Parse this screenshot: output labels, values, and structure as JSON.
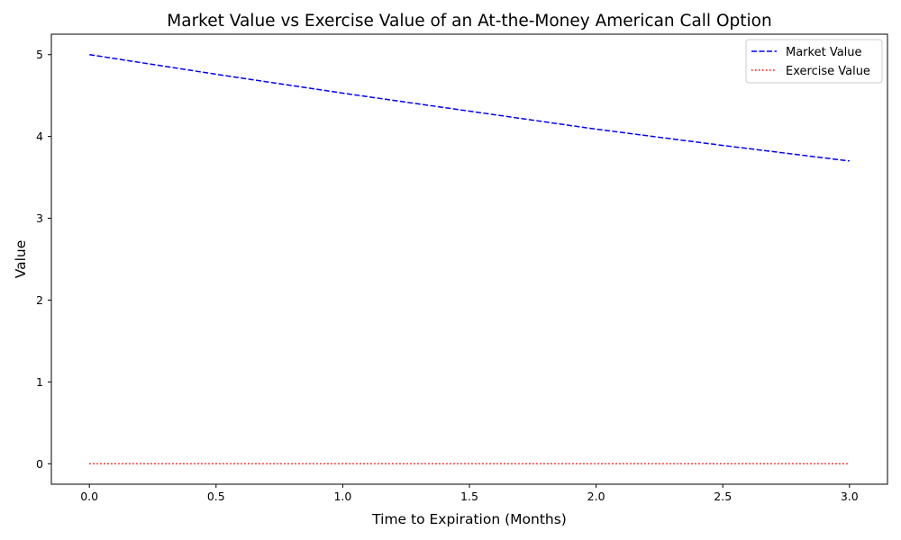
{
  "chart_data": {
    "type": "line",
    "title": "Market Value vs Exercise Value of an At-the-Money American Call Option",
    "xlabel": "Time to Expiration (Months)",
    "ylabel": "Value",
    "xlim": [
      -0.15,
      3.15
    ],
    "ylim": [
      -0.25,
      5.25
    ],
    "x_ticks": [
      0.0,
      0.5,
      1.0,
      1.5,
      2.0,
      2.5,
      3.0
    ],
    "x_tick_labels": [
      "0.0",
      "0.5",
      "1.0",
      "1.5",
      "2.0",
      "2.5",
      "3.0"
    ],
    "y_ticks": [
      0,
      1,
      2,
      3,
      4,
      5
    ],
    "y_tick_labels": [
      "0",
      "1",
      "2",
      "3",
      "4",
      "5"
    ],
    "grid": false,
    "legend_position": "top-right",
    "series": [
      {
        "name": "Market Value",
        "color": "#0000ff",
        "linestyle": "dashed",
        "x": [
          0.0,
          0.5,
          1.0,
          1.5,
          2.0,
          2.5,
          3.0
        ],
        "y": [
          5.0,
          4.76,
          4.53,
          4.31,
          4.09,
          3.89,
          3.7
        ]
      },
      {
        "name": "Exercise Value",
        "color": "#ff0000",
        "linestyle": "dotted",
        "x": [
          0.0,
          0.5,
          1.0,
          1.5,
          2.0,
          2.5,
          3.0
        ],
        "y": [
          0,
          0,
          0,
          0,
          0,
          0,
          0
        ]
      }
    ]
  }
}
